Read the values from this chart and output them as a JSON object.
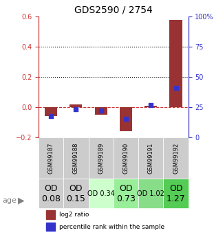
{
  "title": "GDS2590 / 2754",
  "samples": [
    "GSM99187",
    "GSM99188",
    "GSM99189",
    "GSM99190",
    "GSM99191",
    "GSM99192"
  ],
  "log2_ratio": [
    -0.06,
    0.02,
    -0.05,
    -0.16,
    0.01,
    0.58
  ],
  "percentile_rank": [
    0.175,
    0.235,
    0.22,
    0.155,
    0.265,
    0.41
  ],
  "ylim_left": [
    -0.2,
    0.6
  ],
  "ylim_right": [
    0,
    100
  ],
  "yticks_left": [
    -0.2,
    0.0,
    0.2,
    0.4,
    0.6
  ],
  "yticks_right": [
    0,
    25,
    50,
    75,
    100
  ],
  "ytick_labels_right": [
    "0",
    "25",
    "50",
    "75",
    "100%"
  ],
  "hlines": [
    0.0,
    0.2,
    0.4
  ],
  "hline_styles": [
    "dashed",
    "dotted",
    "dotted"
  ],
  "hline_colors": [
    "#cc3333",
    "#000000",
    "#000000"
  ],
  "bar_color": "#993333",
  "dot_color": "#3333cc",
  "bar_width": 0.5,
  "age_labels": [
    "OD\n0.08",
    "OD\n0.15",
    "OD 0.34",
    "OD\n0.73",
    "OD 1.02",
    "OD\n1.27"
  ],
  "age_bg_colors": [
    "#cccccc",
    "#cccccc",
    "#ccffcc",
    "#99ee99",
    "#88dd88",
    "#55cc55"
  ],
  "age_font_sizes": [
    9,
    9,
    7,
    9,
    7,
    9
  ],
  "sample_bg_color": "#cccccc",
  "legend_red": "log2 ratio",
  "legend_blue": "percentile rank within the sample",
  "xlabel_color_left": "#cc3333",
  "xlabel_color_right": "#3333cc",
  "age_label": "age"
}
